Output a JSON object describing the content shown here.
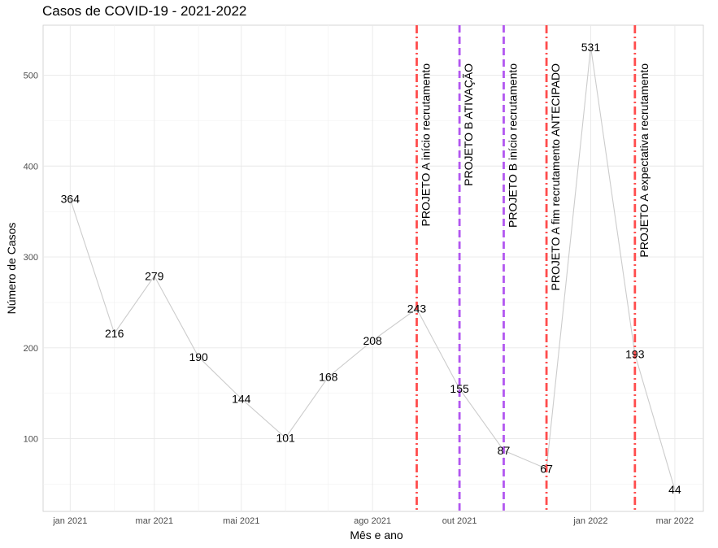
{
  "chart_data": {
    "type": "line",
    "title": "Casos de COVID-19 -  2021-2022",
    "xlabel": "Mês e ano",
    "ylabel": "Número de Casos",
    "ylim": [
      20,
      555
    ],
    "yticks": [
      100,
      200,
      300,
      400,
      500
    ],
    "xlim": [
      "2020-12-13",
      "2022-03-21"
    ],
    "xticks": [
      {
        "date": "2021-01-01",
        "label": "jan 2021"
      },
      {
        "date": "2021-03-01",
        "label": "mar 2021"
      },
      {
        "date": "2021-05-01",
        "label": "mai 2021"
      },
      {
        "date": "2021-08-01",
        "label": "ago 2021"
      },
      {
        "date": "2021-10-01",
        "label": "out 2021"
      },
      {
        "date": "2022-01-01",
        "label": "jan 2022"
      },
      {
        "date": "2022-03-01",
        "label": "mar 2022"
      }
    ],
    "minor_xticks": [
      "2021-02-01",
      "2021-04-01",
      "2021-06-01",
      "2021-07-01",
      "2021-09-01",
      "2021-11-01",
      "2021-12-01",
      "2022-02-01"
    ],
    "minor_yticks": [
      50,
      150,
      250,
      350,
      450
    ],
    "grid": true,
    "line_color": "#cccccc",
    "points": [
      {
        "x": "2021-01-01",
        "y": 364
      },
      {
        "x": "2021-02-01",
        "y": 216
      },
      {
        "x": "2021-03-01",
        "y": 279
      },
      {
        "x": "2021-04-01",
        "y": 190
      },
      {
        "x": "2021-05-01",
        "y": 144
      },
      {
        "x": "2021-06-01",
        "y": 101
      },
      {
        "x": "2021-07-01",
        "y": 168
      },
      {
        "x": "2021-08-01",
        "y": 208
      },
      {
        "x": "2021-09-01",
        "y": 243
      },
      {
        "x": "2021-10-01",
        "y": 155
      },
      {
        "x": "2021-11-01",
        "y": 87
      },
      {
        "x": "2021-12-01",
        "y": 67
      },
      {
        "x": "2022-01-01",
        "y": 531
      },
      {
        "x": "2022-02-01",
        "y": 193
      },
      {
        "x": "2022-03-01",
        "y": 44
      }
    ],
    "vlines": [
      {
        "date": "2021-09-01",
        "label": "PROJETO A início recrutamento",
        "color": "#ff4d4d",
        "style": "dotdash"
      },
      {
        "date": "2021-10-01",
        "label": "PROJETO B ATIVAÇÃO",
        "color": "#b256f0",
        "style": "dashed"
      },
      {
        "date": "2021-11-01",
        "label": "PROJETO B início recrutamento",
        "color": "#b256f0",
        "style": "dashed"
      },
      {
        "date": "2021-12-01",
        "label": "PROJETO A fim recrutamento ANTECIPADO",
        "color": "#ff4d4d",
        "style": "dotdash"
      },
      {
        "date": "2022-02-01",
        "label": "PROJETO A expectativa recrutamento",
        "color": "#ff4d4d",
        "style": "dotdash"
      }
    ]
  }
}
